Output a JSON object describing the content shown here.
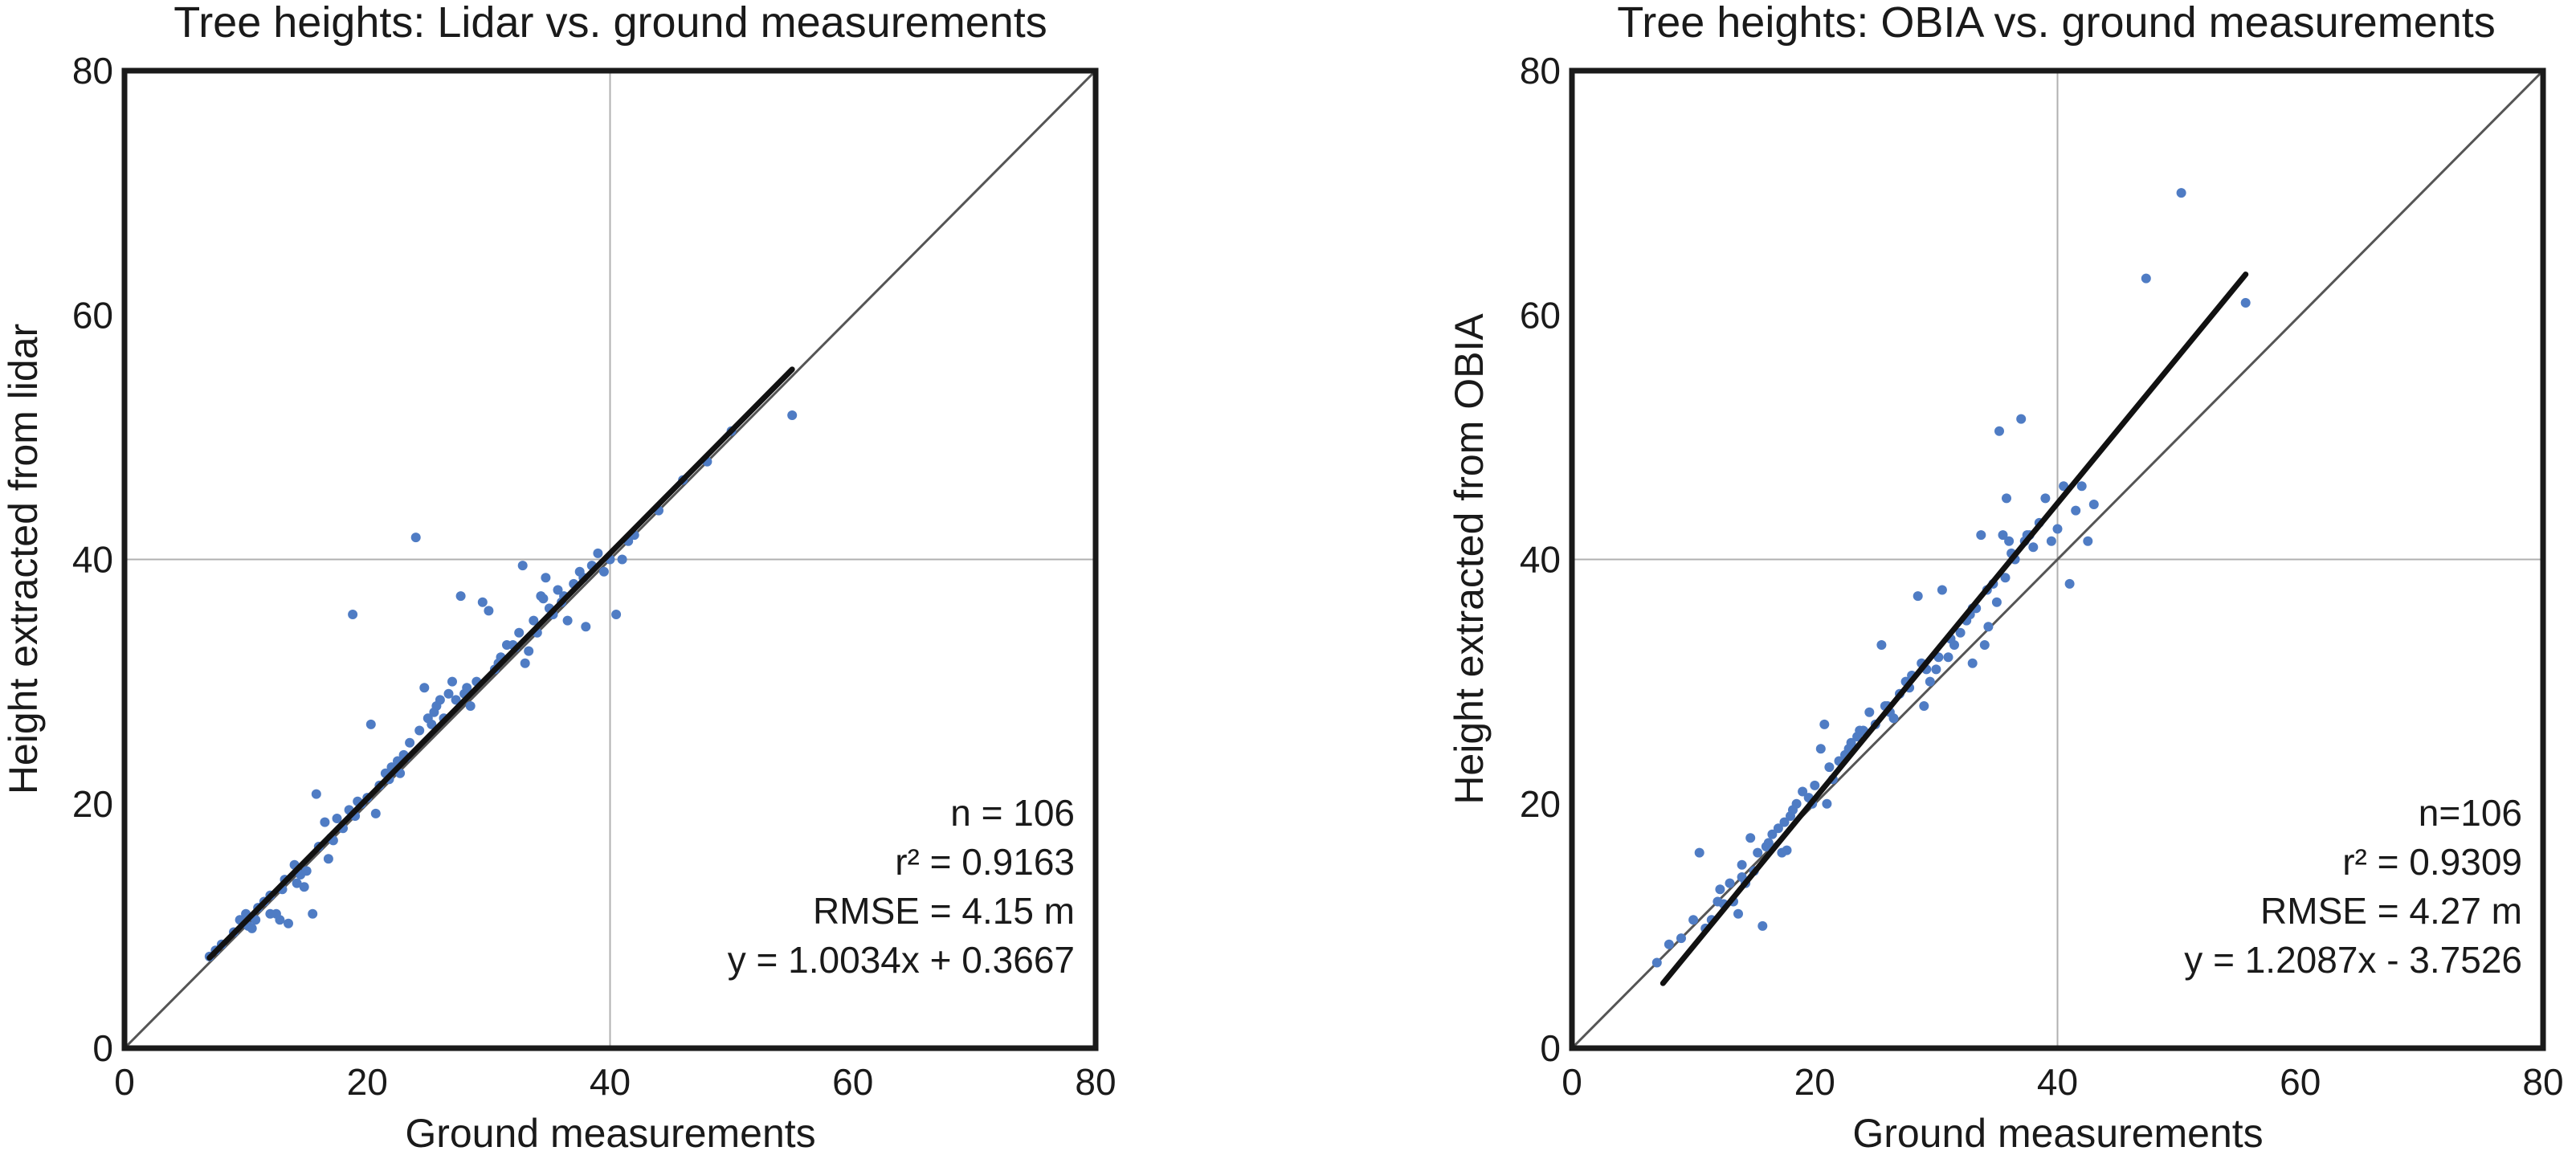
{
  "chart_data": [
    {
      "type": "scatter",
      "title": "Tree heights: Lidar vs. ground measurements",
      "xlabel": "Ground measurements",
      "ylabel": "Height extracted from lidar",
      "xlim": [
        0,
        80
      ],
      "ylim": [
        0,
        80
      ],
      "xticks": [
        "0",
        "20",
        "40",
        "60",
        "80"
      ],
      "yticks": [
        "0",
        "20",
        "40",
        "60",
        "80"
      ],
      "grid": "single lines at x=40 and y=40",
      "point_color": "#4f7cc4",
      "annotations": [
        "n = 106",
        "r² = 0.9163",
        "RMSE = 4.15 m",
        "y = 1.0034x + 0.3667"
      ],
      "fit_line": {
        "slope": 1.0034,
        "intercept": 0.3667,
        "x_range": [
          7,
          55
        ]
      },
      "identity_line": true,
      "points": [
        [
          7,
          7.5
        ],
        [
          7.5,
          8
        ],
        [
          8,
          8.5
        ],
        [
          9,
          9.5
        ],
        [
          9.5,
          10.5
        ],
        [
          10,
          11
        ],
        [
          10.2,
          10
        ],
        [
          10.5,
          9.8
        ],
        [
          10.8,
          10.5
        ],
        [
          11,
          11.5
        ],
        [
          11.5,
          12
        ],
        [
          12,
          12.5
        ],
        [
          12.5,
          11
        ],
        [
          12.8,
          10.5
        ],
        [
          13,
          13
        ],
        [
          13.2,
          13.8
        ],
        [
          13.5,
          10.2
        ],
        [
          14,
          15
        ],
        [
          14.2,
          13.5
        ],
        [
          14.5,
          14.2
        ],
        [
          15,
          14.5
        ],
        [
          15.5,
          11
        ],
        [
          15.8,
          20.8
        ],
        [
          16,
          16.5
        ],
        [
          16.5,
          18.5
        ],
        [
          16.8,
          15.5
        ],
        [
          17,
          17.2
        ],
        [
          17.5,
          18.8
        ],
        [
          18,
          18
        ],
        [
          18.5,
          19.5
        ],
        [
          18.8,
          35.5
        ],
        [
          19,
          19
        ],
        [
          19.5,
          20
        ],
        [
          20,
          20.5
        ],
        [
          20.3,
          26.5
        ],
        [
          20.7,
          19.2
        ],
        [
          21,
          21.5
        ],
        [
          21.5,
          22.5
        ],
        [
          22,
          23
        ],
        [
          22.5,
          23.5
        ],
        [
          23,
          24
        ],
        [
          23.5,
          25
        ],
        [
          24,
          41.8
        ],
        [
          24.3,
          26
        ],
        [
          24.7,
          29.5
        ],
        [
          25,
          27
        ],
        [
          25.3,
          26.5
        ],
        [
          25.7,
          28
        ],
        [
          26,
          28.5
        ],
        [
          26.3,
          27
        ],
        [
          26.7,
          29
        ],
        [
          27,
          30
        ],
        [
          27.3,
          28.5
        ],
        [
          27.7,
          37
        ],
        [
          28,
          29
        ],
        [
          28.5,
          28
        ],
        [
          29,
          30
        ],
        [
          29.5,
          36.5
        ],
        [
          30,
          35.8
        ],
        [
          30.5,
          31
        ],
        [
          31,
          32
        ],
        [
          31.5,
          33
        ],
        [
          32,
          33
        ],
        [
          32.5,
          34
        ],
        [
          32.8,
          39.5
        ],
        [
          33,
          31.5
        ],
        [
          33.3,
          32.5
        ],
        [
          33.7,
          35
        ],
        [
          34,
          34
        ],
        [
          34.3,
          37
        ],
        [
          34.7,
          38.5
        ],
        [
          35,
          36
        ],
        [
          35.3,
          35.5
        ],
        [
          35.7,
          37.5
        ],
        [
          36,
          36.5
        ],
        [
          36.5,
          35
        ],
        [
          37,
          38
        ],
        [
          37.5,
          39
        ],
        [
          38,
          34.5
        ],
        [
          38.5,
          39.5
        ],
        [
          39,
          40.5
        ],
        [
          39.5,
          39
        ],
        [
          40,
          40
        ],
        [
          40.5,
          35.5
        ],
        [
          41,
          40
        ],
        [
          41.5,
          41.5
        ],
        [
          42,
          42
        ],
        [
          44,
          44
        ],
        [
          46,
          46.5
        ],
        [
          48,
          48
        ],
        [
          50,
          50.5
        ],
        [
          55,
          51.8
        ],
        [
          12,
          11
        ],
        [
          14.8,
          13.2
        ],
        [
          17.2,
          17
        ],
        [
          19.2,
          20.2
        ],
        [
          21.8,
          22
        ],
        [
          23.2,
          23.8
        ],
        [
          25.5,
          27.5
        ],
        [
          28.2,
          29.5
        ],
        [
          30.8,
          31.5
        ],
        [
          32.2,
          32.8
        ],
        [
          34.5,
          36.8
        ],
        [
          36.2,
          37
        ],
        [
          37.8,
          38.5
        ],
        [
          22.7,
          22.5
        ]
      ]
    },
    {
      "type": "scatter",
      "title": "Tree heights: OBIA vs. ground measurements",
      "xlabel": "Ground measurements",
      "ylabel": "Height extracted from OBIA",
      "xlim": [
        0,
        80
      ],
      "ylim": [
        0,
        80
      ],
      "xticks": [
        "0",
        "20",
        "40",
        "60",
        "80"
      ],
      "yticks": [
        "0",
        "20",
        "40",
        "60",
        "80"
      ],
      "grid": "single lines at x=40 and y=40",
      "point_color": "#4f7cc4",
      "annotations": [
        "n=106",
        "r² = 0.9309",
        "RMSE = 4.27 m",
        "y = 1.2087x - 3.7526"
      ],
      "fit_line": {
        "slope": 1.2087,
        "intercept": -3.7526,
        "x_range": [
          7.5,
          55.5
        ]
      },
      "identity_line": true,
      "points": [
        [
          7,
          7
        ],
        [
          8,
          8.5
        ],
        [
          9,
          9
        ],
        [
          10,
          10.5
        ],
        [
          10.5,
          16
        ],
        [
          11,
          9.8
        ],
        [
          11.5,
          10.5
        ],
        [
          12,
          12
        ],
        [
          12.5,
          11.8
        ],
        [
          13,
          13.5
        ],
        [
          13.3,
          12
        ],
        [
          13.7,
          11
        ],
        [
          14,
          15
        ],
        [
          14.3,
          13.5
        ],
        [
          14.7,
          17.2
        ],
        [
          15,
          14.5
        ],
        [
          15.3,
          16
        ],
        [
          15.7,
          10
        ],
        [
          16,
          16.5
        ],
        [
          16.5,
          17.5
        ],
        [
          17,
          18
        ],
        [
          17.3,
          16
        ],
        [
          17.7,
          16.2
        ],
        [
          18,
          19
        ],
        [
          18.5,
          20
        ],
        [
          19,
          21
        ],
        [
          19.5,
          20.5
        ],
        [
          20,
          21.5
        ],
        [
          20.5,
          24.5
        ],
        [
          20.8,
          26.5
        ],
        [
          21,
          20
        ],
        [
          21.5,
          22
        ],
        [
          22,
          23.5
        ],
        [
          22.5,
          24
        ],
        [
          23,
          25
        ],
        [
          23.5,
          25.5
        ],
        [
          24,
          26
        ],
        [
          24.5,
          27.5
        ],
        [
          25,
          26.5
        ],
        [
          25.5,
          33
        ],
        [
          26,
          28
        ],
        [
          26.5,
          27
        ],
        [
          27,
          29
        ],
        [
          27.5,
          30
        ],
        [
          28,
          30.5
        ],
        [
          28.5,
          37
        ],
        [
          29,
          28
        ],
        [
          29.5,
          30
        ],
        [
          30,
          31
        ],
        [
          30.5,
          37.5
        ],
        [
          31,
          32
        ],
        [
          31.5,
          33
        ],
        [
          32,
          34
        ],
        [
          32.5,
          35
        ],
        [
          33,
          31.5
        ],
        [
          33.3,
          36
        ],
        [
          33.7,
          42
        ],
        [
          34,
          33
        ],
        [
          34.3,
          34.5
        ],
        [
          34.7,
          38
        ],
        [
          35,
          36.5
        ],
        [
          35.2,
          50.5
        ],
        [
          35.5,
          42
        ],
        [
          35.8,
          45
        ],
        [
          36,
          41.5
        ],
        [
          36.5,
          40
        ],
        [
          37,
          51.5
        ],
        [
          37.3,
          41.5
        ],
        [
          37.7,
          42
        ],
        [
          38,
          41
        ],
        [
          39,
          45
        ],
        [
          39.5,
          41.5
        ],
        [
          40,
          42.5
        ],
        [
          41,
          38
        ],
        [
          41.5,
          44
        ],
        [
          42,
          46
        ],
        [
          42.5,
          41.5
        ],
        [
          43,
          44.5
        ],
        [
          47.3,
          63
        ],
        [
          50.2,
          70
        ],
        [
          55.5,
          61
        ],
        [
          14,
          14
        ],
        [
          16.2,
          16.8
        ],
        [
          18.2,
          19.5
        ],
        [
          19.8,
          20
        ],
        [
          21.2,
          23
        ],
        [
          22.8,
          24.5
        ],
        [
          24.2,
          25.8
        ],
        [
          26.2,
          27.5
        ],
        [
          27.8,
          29.5
        ],
        [
          29.2,
          31
        ],
        [
          31.2,
          33.5
        ],
        [
          32.8,
          35.5
        ],
        [
          34.2,
          37.5
        ],
        [
          36.2,
          40.5
        ],
        [
          12.2,
          13
        ],
        [
          17.5,
          18.5
        ],
        [
          23.7,
          26
        ],
        [
          25.8,
          28
        ],
        [
          28.8,
          31.5
        ],
        [
          30.2,
          32
        ],
        [
          33,
          36
        ],
        [
          35.7,
          38.5
        ],
        [
          37.5,
          42
        ],
        [
          38.5,
          43
        ],
        [
          40.5,
          46
        ]
      ]
    }
  ]
}
